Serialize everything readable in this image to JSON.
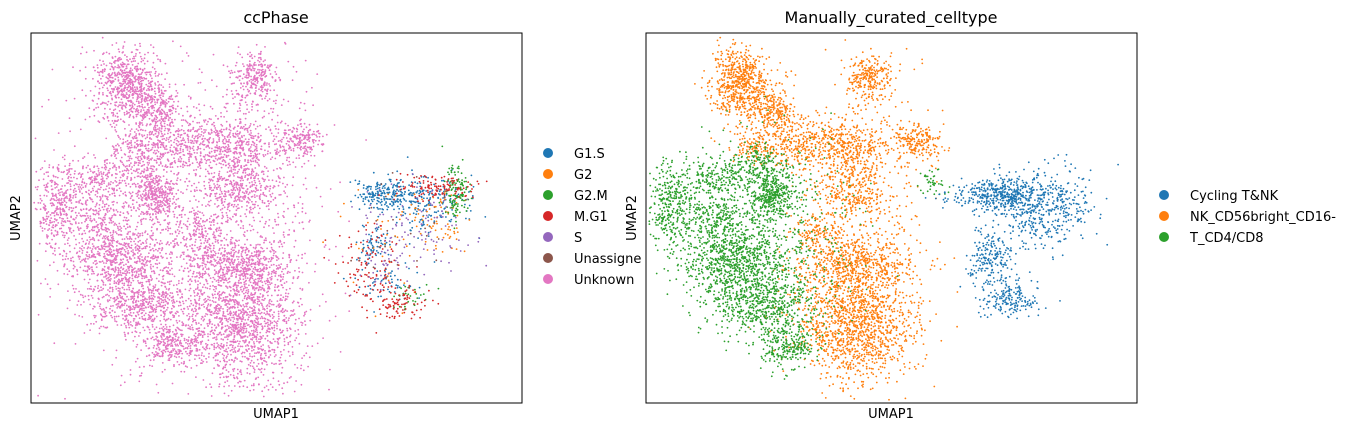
{
  "chart_data": [
    {
      "type": "scatter",
      "title": "ccPhase",
      "xlabel": "UMAP1",
      "ylabel": "UMAP2",
      "xlim": [
        -7.0,
        11.0
      ],
      "ylim": [
        -6.0,
        8.0
      ],
      "grid": false,
      "legend_position": "right",
      "legend": [
        {
          "name": "G1.S",
          "color": "#1f77b4"
        },
        {
          "name": "G2",
          "color": "#ff7f0e"
        },
        {
          "name": "G2.M",
          "color": "#2ca02c"
        },
        {
          "name": "M.G1",
          "color": "#d62728"
        },
        {
          "name": "S",
          "color": "#9467bd"
        },
        {
          "name": "Unassigne",
          "color": "#8c564b"
        },
        {
          "name": "Unknown",
          "color": "#e377c2"
        }
      ],
      "series": [
        {
          "name": "Unknown",
          "color": "#e377c2",
          "clusters": [
            {
              "x": -3.5,
              "y": 6.0,
              "sx": 0.55,
              "sy": 0.7,
              "n": 650
            },
            {
              "x": -2.3,
              "y": 5.1,
              "sx": 0.35,
              "sy": 0.45,
              "n": 200
            },
            {
              "x": -1.5,
              "y": 3.8,
              "sx": 0.7,
              "sy": 0.6,
              "n": 300
            },
            {
              "x": -3.0,
              "y": 3.5,
              "sx": 0.55,
              "sy": 0.5,
              "n": 200
            },
            {
              "x": -4.5,
              "y": 2.5,
              "sx": 0.6,
              "sy": 0.45,
              "n": 200
            },
            {
              "x": -2.4,
              "y": 1.9,
              "sx": 0.45,
              "sy": 0.5,
              "n": 400
            },
            {
              "x": -6.0,
              "y": 1.4,
              "sx": 0.45,
              "sy": 0.8,
              "n": 350
            },
            {
              "x": -4.4,
              "y": 0.9,
              "sx": 0.5,
              "sy": 0.5,
              "n": 200
            },
            {
              "x": -3.6,
              "y": -0.6,
              "sx": 1.0,
              "sy": 0.65,
              "n": 700
            },
            {
              "x": -2.8,
              "y": -2.3,
              "sx": 1.0,
              "sy": 0.55,
              "n": 550
            },
            {
              "x": -1.8,
              "y": -3.8,
              "sx": 0.55,
              "sy": 0.4,
              "n": 250
            },
            {
              "x": 1.2,
              "y": 6.3,
              "sx": 0.4,
              "sy": 0.45,
              "n": 250
            },
            {
              "x": 0.4,
              "y": 3.7,
              "sx": 0.75,
              "sy": 0.6,
              "n": 400
            },
            {
              "x": 2.9,
              "y": 3.9,
              "sx": 0.45,
              "sy": 0.35,
              "n": 200
            },
            {
              "x": 0.5,
              "y": 2.0,
              "sx": 0.7,
              "sy": 0.5,
              "n": 250
            },
            {
              "x": -0.7,
              "y": 0.5,
              "sx": 0.5,
              "sy": 0.4,
              "n": 150
            },
            {
              "x": 0.6,
              "y": -0.8,
              "sx": 1.0,
              "sy": 0.5,
              "n": 500
            },
            {
              "x": 0.7,
              "y": -3.0,
              "sx": 1.1,
              "sy": 1.1,
              "n": 1300
            },
            {
              "x": 1.4,
              "y": 1.0,
              "sx": 1.0,
              "sy": 2.8,
              "n": 400
            },
            {
              "x": -1.8,
              "y": 1.5,
              "sx": 2.4,
              "sy": 3.2,
              "n": 900
            }
          ]
        },
        {
          "name": "G1.S",
          "color": "#1f77b4",
          "clusters": [
            {
              "x": 6.0,
              "y": 1.9,
              "sx": 0.55,
              "sy": 0.3,
              "n": 200
            },
            {
              "x": 7.5,
              "y": 1.6,
              "sx": 0.8,
              "sy": 0.55,
              "n": 200
            },
            {
              "x": 5.5,
              "y": 0.0,
              "sx": 0.35,
              "sy": 0.35,
              "n": 60
            },
            {
              "x": 6.0,
              "y": -1.3,
              "sx": 0.6,
              "sy": 0.4,
              "n": 60
            }
          ]
        },
        {
          "name": "G2",
          "color": "#ff7f0e",
          "clusters": [
            {
              "x": 8.0,
              "y": 1.0,
              "sx": 0.6,
              "sy": 0.6,
              "n": 70
            },
            {
              "x": 6.2,
              "y": 0.0,
              "sx": 0.9,
              "sy": 1.2,
              "n": 40
            }
          ]
        },
        {
          "name": "G2.M",
          "color": "#2ca02c",
          "clusters": [
            {
              "x": 8.6,
              "y": 1.9,
              "sx": 0.25,
              "sy": 0.5,
              "n": 120
            },
            {
              "x": 7.0,
              "y": -2.0,
              "sx": 0.4,
              "sy": 0.3,
              "n": 30
            }
          ]
        },
        {
          "name": "M.G1",
          "color": "#d62728",
          "clusters": [
            {
              "x": 7.8,
              "y": 2.2,
              "sx": 0.8,
              "sy": 0.25,
              "n": 120
            },
            {
              "x": 5.5,
              "y": -1.0,
              "sx": 0.7,
              "sy": 0.8,
              "n": 120
            },
            {
              "x": 6.6,
              "y": -2.2,
              "sx": 0.6,
              "sy": 0.35,
              "n": 80
            }
          ]
        },
        {
          "name": "S",
          "color": "#9467bd",
          "clusters": [
            {
              "x": 7.2,
              "y": 0.8,
              "sx": 0.9,
              "sy": 0.8,
              "n": 90
            },
            {
              "x": 6.0,
              "y": -0.5,
              "sx": 0.6,
              "sy": 0.7,
              "n": 40
            }
          ]
        },
        {
          "name": "Unassigne",
          "color": "#8c564b",
          "clusters": [
            {
              "x": 6.5,
              "y": 0.5,
              "sx": 1.0,
              "sy": 1.3,
              "n": 25
            }
          ]
        }
      ]
    },
    {
      "type": "scatter",
      "title": "Manually_curated_celltype",
      "xlabel": "UMAP1",
      "ylabel": "UMAP2",
      "xlim": [
        -7.0,
        11.0
      ],
      "ylim": [
        -6.0,
        8.0
      ],
      "grid": false,
      "legend_position": "right",
      "legend": [
        {
          "name": "Cycling T&NK",
          "color": "#1f77b4"
        },
        {
          "name": "NK_CD56bright_CD16-",
          "color": "#ff7f0e"
        },
        {
          "name": "T_CD4/CD8",
          "color": "#2ca02c"
        }
      ],
      "series": [
        {
          "name": "NK_CD56bright_CD16-",
          "color": "#ff7f0e",
          "clusters": [
            {
              "x": -3.5,
              "y": 6.0,
              "sx": 0.55,
              "sy": 0.7,
              "n": 650
            },
            {
              "x": -2.3,
              "y": 5.1,
              "sx": 0.35,
              "sy": 0.45,
              "n": 200
            },
            {
              "x": -1.5,
              "y": 3.8,
              "sx": 0.7,
              "sy": 0.6,
              "n": 300
            },
            {
              "x": -3.0,
              "y": 3.8,
              "sx": 0.45,
              "sy": 0.4,
              "n": 120
            },
            {
              "x": 1.2,
              "y": 6.3,
              "sx": 0.4,
              "sy": 0.45,
              "n": 250
            },
            {
              "x": 0.4,
              "y": 3.7,
              "sx": 0.75,
              "sy": 0.6,
              "n": 400
            },
            {
              "x": 2.9,
              "y": 3.9,
              "sx": 0.45,
              "sy": 0.35,
              "n": 200
            },
            {
              "x": 0.5,
              "y": 2.0,
              "sx": 0.7,
              "sy": 0.5,
              "n": 250
            },
            {
              "x": -0.7,
              "y": 0.5,
              "sx": 0.5,
              "sy": 0.4,
              "n": 150
            },
            {
              "x": 0.6,
              "y": -0.8,
              "sx": 1.0,
              "sy": 0.5,
              "n": 500
            },
            {
              "x": 0.7,
              "y": -3.0,
              "sx": 1.1,
              "sy": 1.1,
              "n": 1300
            },
            {
              "x": 1.4,
              "y": 1.0,
              "sx": 1.0,
              "sy": 2.8,
              "n": 350
            }
          ]
        },
        {
          "name": "T_CD4/CD8",
          "color": "#2ca02c",
          "clusters": [
            {
              "x": -3.0,
              "y": 3.0,
              "sx": 0.55,
              "sy": 0.45,
              "n": 150
            },
            {
              "x": -4.5,
              "y": 2.5,
              "sx": 0.6,
              "sy": 0.45,
              "n": 200
            },
            {
              "x": -2.4,
              "y": 1.9,
              "sx": 0.45,
              "sy": 0.5,
              "n": 400
            },
            {
              "x": -6.0,
              "y": 1.4,
              "sx": 0.45,
              "sy": 0.8,
              "n": 350
            },
            {
              "x": -4.4,
              "y": 0.9,
              "sx": 0.5,
              "sy": 0.5,
              "n": 200
            },
            {
              "x": -3.6,
              "y": -0.6,
              "sx": 1.0,
              "sy": 0.65,
              "n": 700
            },
            {
              "x": -2.8,
              "y": -2.3,
              "sx": 1.0,
              "sy": 0.55,
              "n": 550
            },
            {
              "x": -1.8,
              "y": -3.8,
              "sx": 0.55,
              "sy": 0.4,
              "n": 250
            },
            {
              "x": -2.5,
              "y": 0.5,
              "sx": 1.6,
              "sy": 1.8,
              "n": 500
            },
            {
              "x": 3.5,
              "y": 2.4,
              "sx": 0.25,
              "sy": 0.3,
              "n": 40
            }
          ]
        },
        {
          "name": "Cycling T&NK",
          "color": "#1f77b4",
          "clusters": [
            {
              "x": 6.0,
              "y": 1.9,
              "sx": 0.55,
              "sy": 0.3,
              "n": 300
            },
            {
              "x": 7.5,
              "y": 1.4,
              "sx": 0.9,
              "sy": 0.7,
              "n": 500
            },
            {
              "x": 5.6,
              "y": -0.5,
              "sx": 0.45,
              "sy": 0.6,
              "n": 200
            },
            {
              "x": 6.4,
              "y": -2.0,
              "sx": 0.6,
              "sy": 0.35,
              "n": 180
            },
            {
              "x": 4.8,
              "y": 1.8,
              "sx": 0.6,
              "sy": 0.25,
              "n": 60
            }
          ]
        }
      ]
    }
  ]
}
